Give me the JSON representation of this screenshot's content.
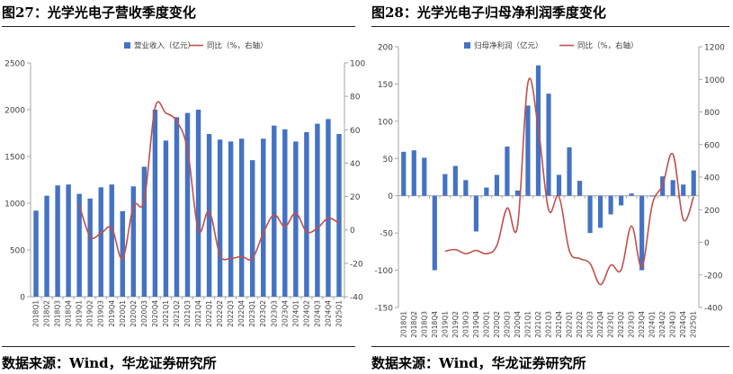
{
  "panels": [
    {
      "caption": "图27：光学光电子营收季度变化",
      "source": "数据来源：Wind，华龙证券研究所",
      "chart_data": {
        "type": "bar+line",
        "categories": [
          "2018Q1",
          "2018Q2",
          "2018Q3",
          "2018Q4",
          "2019Q1",
          "2019Q2",
          "2019Q3",
          "2019Q4",
          "2020Q1",
          "2020Q2",
          "2020Q3",
          "2020Q4",
          "2021Q1",
          "2021Q2",
          "2021Q3",
          "2021Q4",
          "2022Q1",
          "2022Q2",
          "2022Q3",
          "2022Q4",
          "2023Q1",
          "2023Q2",
          "2023Q3",
          "2023Q4",
          "2024Q1",
          "2024Q2",
          "2024Q3",
          "2024Q4",
          "2025Q1"
        ],
        "bar_series": {
          "name": "营业收入（亿元）",
          "color": "#4472c4",
          "values": [
            920,
            1080,
            1190,
            1200,
            1100,
            1050,
            1170,
            1200,
            915,
            1180,
            1390,
            2000,
            1670,
            1920,
            1965,
            2000,
            1740,
            1680,
            1660,
            1690,
            1460,
            1690,
            1830,
            1790,
            1660,
            1760,
            1850,
            1900,
            1740
          ]
        },
        "line_series": {
          "name": "同比（%，右轴）",
          "color": "#c0504d",
          "values": [
            null,
            null,
            null,
            null,
            15,
            -4,
            -2,
            1,
            -17,
            14,
            18,
            73,
            70,
            65,
            48,
            0,
            11,
            -15,
            -17,
            -16,
            -17,
            -2,
            9,
            2,
            10,
            -1,
            1,
            7,
            4
          ]
        },
        "ylim": [
          0,
          2500
        ],
        "yticks": [
          "0",
          "500",
          "1000",
          "1500",
          "2000",
          "2500"
        ],
        "y2lim": [
          -40,
          100
        ],
        "y2ticks": [
          "-40",
          "-20",
          "0",
          "20",
          "40",
          "60",
          "80",
          "100"
        ]
      }
    },
    {
      "caption": "图28：光学光电子归母净利润季度变化",
      "source": "数据来源：Wind，华龙证券研究所",
      "chart_data": {
        "type": "bar+line",
        "categories": [
          "2018Q1",
          "2018Q2",
          "2018Q3",
          "2018Q4",
          "2019Q1",
          "2019Q2",
          "2019Q3",
          "2019Q4",
          "2020Q1",
          "2020Q2",
          "2020Q3",
          "2020Q4",
          "2021Q1",
          "2021Q2",
          "2021Q3",
          "2021Q4",
          "2022Q1",
          "2022Q2",
          "2022Q3",
          "2022Q4",
          "2023Q1",
          "2023Q2",
          "2023Q3",
          "2023Q4",
          "2024Q1",
          "2024Q2",
          "2024Q3",
          "2024Q4",
          "2025Q1"
        ],
        "bar_series": {
          "name": "归母净利润（亿元）",
          "color": "#4472c4",
          "values": [
            59,
            61,
            51,
            -100,
            29,
            40,
            21,
            -48,
            11,
            28,
            66,
            7,
            121,
            175,
            137,
            28,
            65,
            20,
            -50,
            -43,
            -25,
            -13,
            3,
            -100,
            -1,
            26,
            21,
            15,
            34
          ]
        },
        "line_series": {
          "name": "同比（%，右轴）",
          "color": "#c0504d",
          "values": [
            null,
            null,
            null,
            null,
            -55,
            -45,
            -70,
            -50,
            -70,
            -20,
            210,
            100,
            980,
            700,
            200,
            280,
            -50,
            -100,
            -130,
            -260,
            -140,
            -170,
            100,
            -150,
            230,
            350,
            540,
            140,
            280
          ]
        },
        "ylim": [
          -150,
          200
        ],
        "yticks": [
          "-150",
          "-100",
          "-50",
          "0",
          "50",
          "100",
          "150",
          "200"
        ],
        "y2lim": [
          -400,
          1200
        ],
        "y2ticks": [
          "-400",
          "-200",
          "0",
          "200",
          "400",
          "600",
          "800",
          "1000",
          "1200"
        ]
      }
    }
  ]
}
